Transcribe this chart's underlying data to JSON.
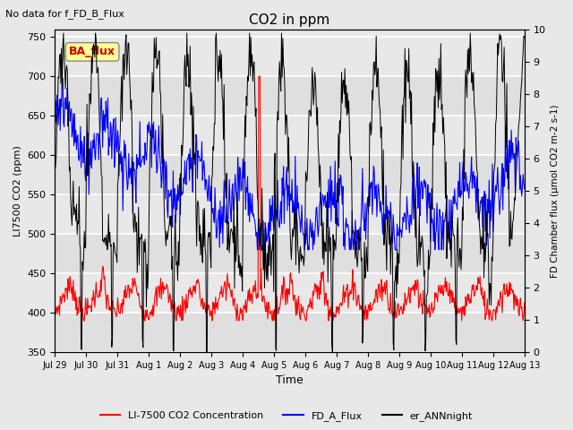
{
  "title": "CO2 in ppm",
  "suptitle": "No data for f_FD_B_Flux",
  "xlabel": "Time",
  "ylabel_left": "LI7500 CO2 (ppm)",
  "ylabel_right": "FD Chamber flux (μmol CO2 m-2 s-1)",
  "ylim_left": [
    350,
    760
  ],
  "ylim_right": [
    0.0,
    10.0
  ],
  "yticks_left": [
    350,
    400,
    450,
    500,
    550,
    600,
    650,
    700,
    750
  ],
  "yticks_right": [
    0.0,
    1.0,
    2.0,
    3.0,
    4.0,
    5.0,
    6.0,
    7.0,
    8.0,
    9.0,
    10.0
  ],
  "xtick_labels": [
    "Jul 29",
    "Jul 30",
    "Jul 31",
    "Aug 1",
    "Aug 2",
    "Aug 3",
    "Aug 4",
    "Aug 5",
    "Aug 6",
    "Aug 7",
    "Aug 8",
    "Aug 9",
    "Aug 10",
    "Aug 11",
    "Aug 12",
    "Aug 13"
  ],
  "n_days": 15,
  "background_color": "#e8e8e8",
  "plot_bg_color": "#e8e8e8",
  "legend_entries": [
    "LI-7500 CO2 Concentration",
    "FD_A_Flux",
    "er_ANNnight"
  ],
  "ba_flux_box_color": "#ffff99",
  "ba_flux_text_color": "#cc0000",
  "grid_color": "#ffffff",
  "annotation_text": "BA_flux"
}
